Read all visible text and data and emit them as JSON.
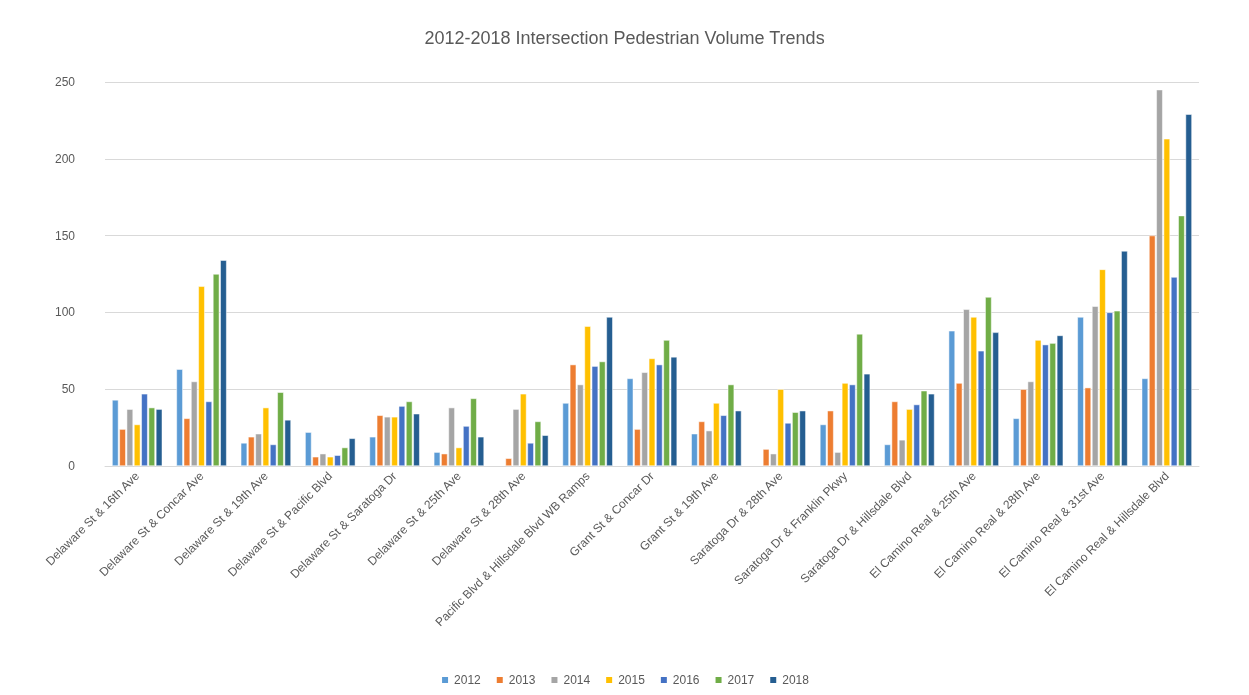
{
  "chart_data": {
    "type": "bar",
    "title": "2012-2018 Intersection Pedestrian Volume Trends",
    "categories": [
      "Delaware St & 16th Ave",
      "Delaware St & Concar Ave",
      "Delaware St & 19th Ave",
      "Delaware St & Pacific Blvd",
      "Delaware St & Saratoga Dr",
      "Delaware St & 25th Ave",
      "Delaware St & 28th Ave",
      "Pacific Blvd & Hillsdale Blvd WB Ramps",
      "Grant St & Concar Dr",
      "Grant St & 19th Ave",
      "Saratoga Dr & 28th Ave",
      "Saratoga Dr & Franklin Pkwy",
      "Saratoga Dr & Hillsdale Blvd",
      "El Camino Real & 25th Ave",
      "El Camino Real & 28th Ave",
      "El Camino Real & 31st Ave",
      "El Camino Real & Hillsdale Blvd"
    ],
    "series": [
      {
        "name": "2012",
        "color": "#5b9bd5",
        "values": [
          43,
          63,
          15,
          22,
          19,
          9,
          null,
          41,
          57,
          21,
          null,
          27,
          14,
          88,
          31,
          97,
          57
        ]
      },
      {
        "name": "2013",
        "color": "#ed7d31",
        "values": [
          24,
          31,
          19,
          6,
          33,
          8,
          5,
          66,
          24,
          29,
          11,
          36,
          42,
          54,
          50,
          51,
          150
        ]
      },
      {
        "name": "2014",
        "color": "#a5a5a5",
        "values": [
          37,
          55,
          21,
          8,
          32,
          38,
          37,
          53,
          61,
          23,
          8,
          9,
          17,
          102,
          55,
          104,
          245
        ]
      },
      {
        "name": "2015",
        "color": "#ffc000",
        "values": [
          27,
          117,
          38,
          6,
          32,
          12,
          47,
          91,
          70,
          41,
          50,
          54,
          37,
          97,
          82,
          128,
          213
        ]
      },
      {
        "name": "2016",
        "color": "#4472c4",
        "values": [
          47,
          42,
          14,
          7,
          39,
          26,
          15,
          65,
          66,
          33,
          28,
          53,
          40,
          75,
          79,
          100,
          123
        ]
      },
      {
        "name": "2017",
        "color": "#70ad47",
        "values": [
          38,
          125,
          48,
          12,
          42,
          44,
          29,
          68,
          82,
          53,
          35,
          86,
          49,
          110,
          80,
          101,
          163
        ]
      },
      {
        "name": "2018",
        "color": "#255e91",
        "values": [
          37,
          134,
          30,
          18,
          34,
          19,
          20,
          97,
          71,
          36,
          36,
          60,
          47,
          87,
          85,
          140,
          229
        ]
      }
    ],
    "ylim": [
      0,
      250
    ],
    "yticks": [
      0,
      50,
      100,
      150,
      200,
      250
    ],
    "grid": "y",
    "legend": "bottom"
  }
}
